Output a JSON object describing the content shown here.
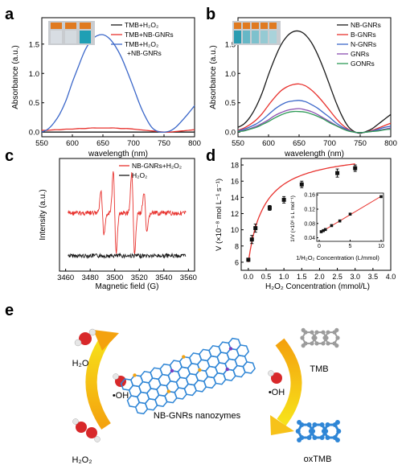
{
  "panel_letters": [
    "a",
    "b",
    "c",
    "d",
    "e"
  ],
  "panel_a": {
    "xlabel": "wavelength (nm)",
    "ylabel": "Absorbance (a.u.)",
    "xticks": [
      "550",
      "600",
      "650",
      "700",
      "750",
      "800"
    ],
    "yticks": [
      "0.0",
      "0.5",
      "1.0",
      "1.5"
    ],
    "legend": [
      "TMB+H₂O₂",
      "TMB+NB-GNRs",
      "TMB+H₂O₂",
      "+NB-GNRs"
    ]
  },
  "panel_b": {
    "xlabel": "wavelength (nm)",
    "ylabel": "Absorbance (a.u.)",
    "xticks": [
      "550",
      "600",
      "650",
      "700",
      "750",
      "800"
    ],
    "yticks": [
      "0.0",
      "0.5",
      "1.0",
      "1.5"
    ],
    "legend": [
      "NB-GNRs",
      "B-GNRs",
      "N-GNRs",
      "GNRs",
      "GONRs"
    ]
  },
  "panel_c": {
    "xlabel": "Magnetic field (G)",
    "ylabel": "Intensity (a.u.)",
    "xticks": [
      "3460",
      "3480",
      "3500",
      "3520",
      "3540",
      "3560"
    ],
    "legend": [
      "NB-GNRs+H₂O₂",
      "H₂O₂"
    ]
  },
  "panel_d": {
    "xlabel": "H₂O₂ Concentration (mmol/L)",
    "ylabel": "V (×10⁻⁸ mol L⁻¹ s⁻¹)",
    "xticks": [
      "0.0",
      "0.5",
      "1.0",
      "1.5",
      "2.0",
      "2.5",
      "3.0",
      "3.5",
      "4.0"
    ],
    "yticks": [
      "6",
      "8",
      "10",
      "12",
      "14",
      "16",
      "18"
    ],
    "inset_xlabel": "1/H₂O₂ Concentration (L/mmol)",
    "inset_ylabel": "1/V (×10⁸ s L mol⁻¹)",
    "inset_xticks": [
      "0",
      "5",
      "10"
    ],
    "inset_yticks": [
      "0.04",
      "0.08",
      "0.12",
      "0.16"
    ]
  },
  "panel_e": {
    "labels": [
      "H₂O",
      "•OH",
      "H₂O₂",
      "NB-GNRs nanozymes",
      "TMB",
      "•OH",
      "oxTMB"
    ]
  },
  "colors": {
    "black": "#1a1a1a",
    "red": "#e8322e",
    "blue": "#3b67c9",
    "purple": "#8a4fb0",
    "green": "#2e9a57",
    "arrow_orange": "#f4a20e",
    "arrow_yellow": "#f7e21a",
    "molecule_blue": "#2f86d6",
    "oxygen_red": "#d8282a"
  },
  "chart_data": [
    {
      "panel": "a",
      "type": "line",
      "xlabel": "wavelength (nm)",
      "ylabel": "Absorbance (a.u.)",
      "xlim": [
        550,
        800
      ],
      "ylim": [
        -0.08,
        1.95
      ],
      "x": [
        550,
        560,
        570,
        580,
        590,
        600,
        610,
        620,
        630,
        640,
        650,
        660,
        670,
        680,
        690,
        700,
        710,
        720,
        730,
        740,
        750,
        760,
        770,
        780,
        790,
        800
      ],
      "series": [
        {
          "name": "TMB+H₂O₂",
          "color": "#1a1a1a",
          "values": [
            0.0,
            0.0,
            0.0,
            0.0,
            0.0,
            0.0,
            0.0,
            0.0,
            0.0,
            0.0,
            0.0,
            0.0,
            0.0,
            0.0,
            0.0,
            0.0,
            0.0,
            0.0,
            0.0,
            0.0,
            0.0,
            0.0,
            0.0,
            0.0,
            0.0,
            0.0
          ]
        },
        {
          "name": "TMB+NB-GNRs",
          "color": "#e8322e",
          "values": [
            0.03,
            0.03,
            0.04,
            0.04,
            0.05,
            0.05,
            0.06,
            0.06,
            0.07,
            0.07,
            0.07,
            0.07,
            0.07,
            0.06,
            0.06,
            0.05,
            0.04,
            0.03,
            0.02,
            0.01,
            0.0,
            0.0,
            0.01,
            0.02,
            0.03,
            0.04
          ]
        },
        {
          "name": "TMB+H₂O₂ +NB-GNRs",
          "color": "#3b67c9",
          "values": [
            0.0,
            0.05,
            0.16,
            0.32,
            0.55,
            0.85,
            1.12,
            1.38,
            1.55,
            1.64,
            1.66,
            1.6,
            1.47,
            1.28,
            1.03,
            0.76,
            0.48,
            0.25,
            0.08,
            0.01,
            0.0,
            0.02,
            0.09,
            0.2,
            0.32,
            0.45
          ]
        }
      ]
    },
    {
      "panel": "b",
      "type": "line",
      "xlabel": "wavelength (nm)",
      "ylabel": "Absorbance (a.u.)",
      "xlim": [
        550,
        800
      ],
      "ylim": [
        -0.08,
        1.95
      ],
      "x": [
        550,
        560,
        570,
        580,
        590,
        600,
        610,
        620,
        630,
        640,
        650,
        660,
        670,
        680,
        690,
        700,
        710,
        720,
        730,
        740,
        750,
        760,
        770,
        780,
        790,
        800
      ],
      "series": [
        {
          "name": "NB-GNRs",
          "color": "#1a1a1a",
          "values": [
            0.08,
            0.14,
            0.26,
            0.44,
            0.68,
            0.98,
            1.25,
            1.48,
            1.63,
            1.71,
            1.72,
            1.66,
            1.53,
            1.33,
            1.08,
            0.8,
            0.52,
            0.28,
            0.1,
            0.01,
            -0.02,
            0.01,
            0.06,
            0.14,
            0.22,
            0.3
          ]
        },
        {
          "name": "B-GNRs",
          "color": "#e8322e",
          "values": [
            0.03,
            0.07,
            0.13,
            0.21,
            0.32,
            0.46,
            0.59,
            0.7,
            0.77,
            0.81,
            0.82,
            0.79,
            0.72,
            0.62,
            0.5,
            0.37,
            0.24,
            0.13,
            0.05,
            0.0,
            -0.01,
            0.0,
            0.03,
            0.07,
            0.11,
            0.15
          ]
        },
        {
          "name": "N-GNRs",
          "color": "#3b67c9",
          "values": [
            0.02,
            0.05,
            0.09,
            0.14,
            0.21,
            0.3,
            0.39,
            0.46,
            0.51,
            0.53,
            0.54,
            0.52,
            0.47,
            0.41,
            0.33,
            0.25,
            0.16,
            0.09,
            0.04,
            0.0,
            -0.01,
            0.0,
            0.02,
            0.05,
            0.08,
            0.1
          ]
        },
        {
          "name": "GNRs",
          "color": "#8a4fb0",
          "values": [
            0.01,
            0.03,
            0.06,
            0.1,
            0.15,
            0.21,
            0.28,
            0.33,
            0.37,
            0.39,
            0.4,
            0.38,
            0.35,
            0.3,
            0.24,
            0.18,
            0.12,
            0.07,
            0.03,
            0.0,
            -0.01,
            0.0,
            0.01,
            0.03,
            0.05,
            0.07
          ]
        },
        {
          "name": "GONRs",
          "color": "#2e9a57",
          "values": [
            0.01,
            0.02,
            0.05,
            0.08,
            0.13,
            0.18,
            0.24,
            0.29,
            0.33,
            0.35,
            0.35,
            0.34,
            0.31,
            0.27,
            0.22,
            0.16,
            0.11,
            0.06,
            0.02,
            0.0,
            -0.01,
            0.0,
            0.01,
            0.02,
            0.04,
            0.05
          ]
        }
      ]
    },
    {
      "panel": "c",
      "type": "line",
      "xlabel": "Magnetic field (G)",
      "ylabel": "Intensity (a.u.)",
      "xlim": [
        3455,
        3565
      ],
      "series": [
        {
          "name": "NB-GNRs+H₂O₂",
          "color": "#e8322e",
          "peaks_at": [
            3490,
            3500,
            3515,
            3525
          ]
        },
        {
          "name": "H₂O₂",
          "color": "#1a1a1a"
        }
      ]
    },
    {
      "panel": "d",
      "type": "scatter",
      "xlabel": "H₂O₂ Concentration (mmol/L)",
      "ylabel": "V (×10⁻⁸ mol L⁻¹ s⁻¹)",
      "xlim": [
        -0.2,
        4.0
      ],
      "ylim": [
        5.0,
        18.8
      ],
      "x": [
        0.0,
        0.1,
        0.2,
        0.6,
        1.0,
        1.5,
        2.5,
        3.0
      ],
      "values": [
        6.3,
        8.8,
        10.2,
        12.7,
        13.7,
        15.6,
        17.0,
        17.6
      ],
      "errors": [
        0.2,
        0.5,
        0.5,
        0.3,
        0.4,
        0.4,
        0.5,
        0.4
      ],
      "inset": {
        "xlim": [
          0,
          10
        ],
        "ylim": [
          0.03,
          0.165
        ],
        "x": [
          0.33,
          0.67,
          1.0,
          2.0,
          3.33,
          5.0,
          10.0
        ],
        "values": [
          0.057,
          0.06,
          0.063,
          0.074,
          0.087,
          0.106,
          0.155
        ]
      }
    }
  ]
}
